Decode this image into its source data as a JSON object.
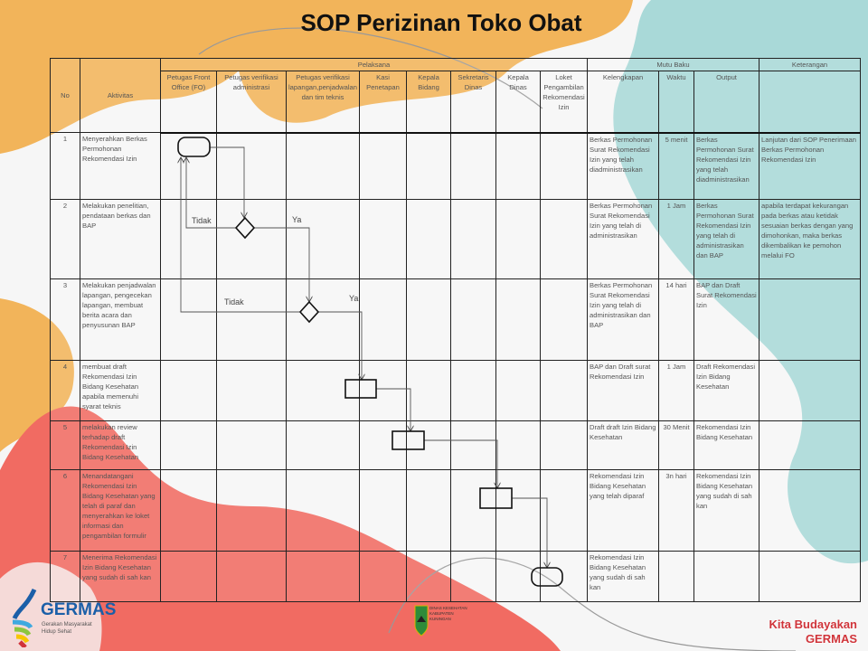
{
  "title": "SOP Perizinan Toko Obat",
  "colors": {
    "orange": "#f2b45a",
    "teal": "#a9d9d8",
    "red": "#f16b62",
    "line": "#444444"
  },
  "header": {
    "no": "No",
    "aktivitas": "Aktivitas",
    "pelaksana": "Pelaksana",
    "mutu_baku": "Mutu Baku",
    "keterangan": "Keterangan",
    "pelaksana_cols": [
      "Petugas Front Office (FO)",
      "Petugas verifikasi administrasi",
      "Petugas verifikasi lapangan,penjadwalan dan tim teknis",
      "Kasi Penetapan",
      "Kepala Bidang",
      "Sekretaris Dinas",
      "Kepala Dinas",
      "Loket Pengambilan Rekomendasi Izin"
    ],
    "mutu_cols": [
      "Kelengkapan",
      "Waktu",
      "Output"
    ]
  },
  "rows": [
    {
      "no": "1",
      "aktivitas": "Menyerahkan Berkas Permohonan Rekomendasi Izin",
      "kelengkapan": "Berkas Permohonan Surat Rekomendasi Izin yang telah diadministrasikan",
      "waktu": "5 menit",
      "output": "Berkas Permohonan Surat Rekomendasi Izin yang telah diadministrasikan",
      "keterangan": "Lanjutan dari SOP Penerimaan Berkas Permohonan Rekomendasi Izin"
    },
    {
      "no": "2",
      "aktivitas": "Melakukan penelitian, pendataan berkas dan BAP",
      "kelengkapan": "Berkas Permohonan Surat Rekomendasi Izin yang telah di administrasikan",
      "waktu": "1 Jam",
      "output": "Berkas Permohonan Surat Rekomendasi Izin yang telah di administrasikan dan BAP",
      "keterangan": "apabila terdapat kekurangan pada berkas atau ketidak sesuaian berkas dengan yang dimohonkan, maka berkas dikembalikan ke pemohon melalui FO"
    },
    {
      "no": "3",
      "aktivitas": "Melakukan penjadwalan lapangan, pengecekan lapangan, membuat berita acara dan penyusunan BAP",
      "kelengkapan": "Berkas Permohonan Surat Rekomendasi Izin yang telah di administrasikan dan BAP",
      "waktu": "14 hari",
      "output": "BAP dan Draft Surat Rekomendasi Izin",
      "keterangan": ""
    },
    {
      "no": "4",
      "aktivitas": "membuat draft Rekomendasi Izin Bidang Kesehatan apabila memenuhi syarat teknis",
      "kelengkapan": "BAP dan Draft surat Rekomendasi Izin",
      "waktu": "1 Jam",
      "output": "Draft Rekomendasi Izin Bidang Kesehatan",
      "keterangan": ""
    },
    {
      "no": "5",
      "aktivitas": "melakukan review terhadap draft Rekomendasi Izin Bidang Kesehatan",
      "kelengkapan": "Draft draft Izin Bidang Kesehatan",
      "waktu": "30 Menit",
      "output": "Rekomendasi Izin Bidang Kesehatan",
      "keterangan": ""
    },
    {
      "no": "6",
      "aktivitas": "Menandatangani Rekomendasi Izin Bidang Kesehatan yang telah di paraf dan menyerahkan ke loket informasi dan pengambilan formulir",
      "kelengkapan": "Rekomendasi Izin Bidang Kesehatan yang telah diparaf",
      "waktu": "3n hari",
      "output": "Rekomendasi Izin Bidang Kesehatan yang sudah di sah kan",
      "keterangan": ""
    },
    {
      "no": "7",
      "aktivitas": "Menerima Rekomendasi Izin Bidang Kesehatan yang sudah di sah kan",
      "kelengkapan": "Rekomendasi Izin Bidang Kesehatan yang sudah di sah kan",
      "waktu": "",
      "output": "",
      "keterangan": ""
    }
  ],
  "flow_labels": {
    "tidak1": "Tidak",
    "ya1": "Ya",
    "tidak2": "Tidak",
    "ya2": "Ya"
  },
  "footer": {
    "germas": "GERMAS",
    "germas_sub": "Gerakan Masyarakat Hidup Sehat",
    "dinas": "DINAS KESEHATAN KABUPATEN KUNINGAN",
    "kita_line1": "Kita Budayakan",
    "kita_line2": "GERMAS"
  }
}
